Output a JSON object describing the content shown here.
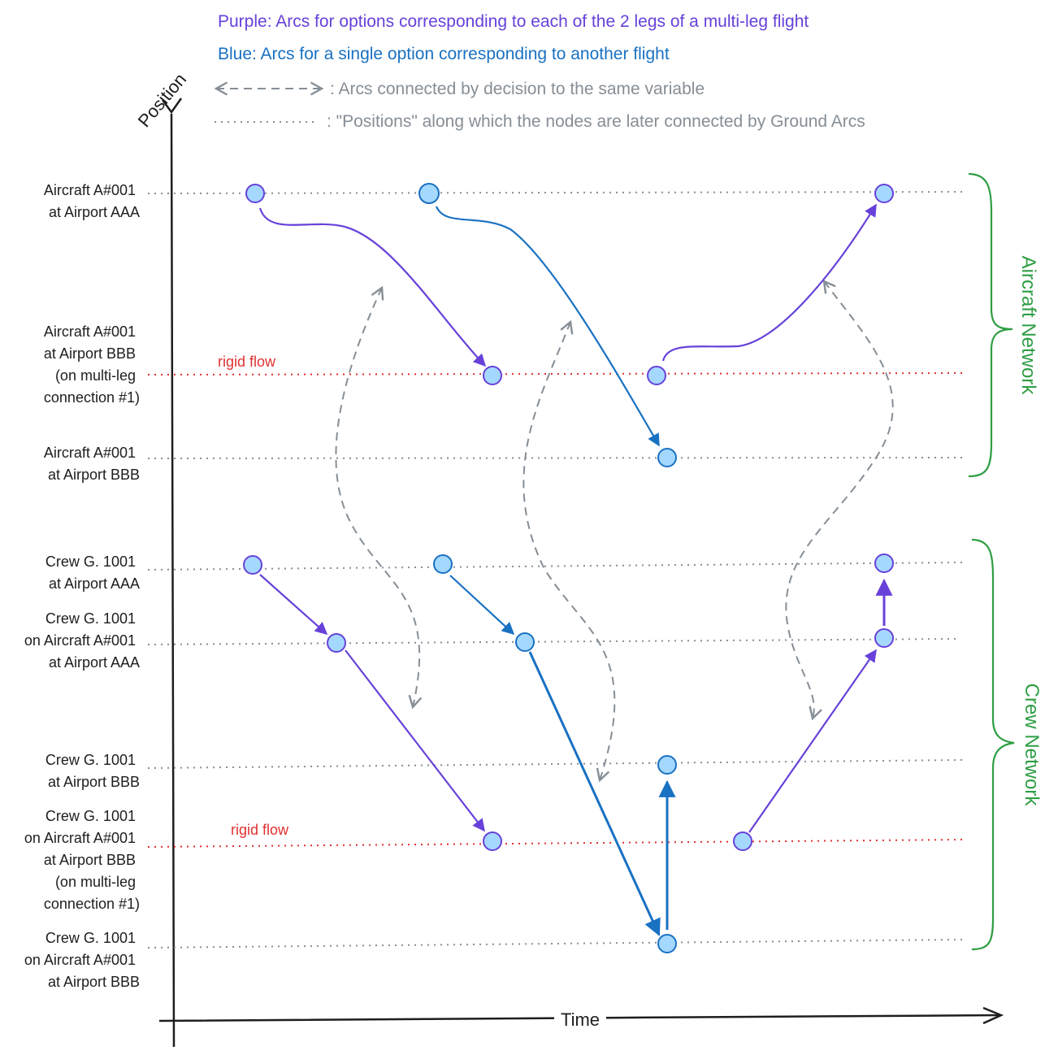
{
  "legend": {
    "purple": "Purple: Arcs for options corresponding to each of the 2 legs of a multi-leg flight",
    "blue": "Blue: Arcs for a single option corresponding to another flight",
    "decision": ": Arcs connected by decision to the same variable",
    "positions": ": \"Positions\" along which the nodes are later connected by Ground Arcs"
  },
  "axes": {
    "y_label": "Position",
    "x_label": "Time"
  },
  "rows": {
    "ac_aaa": [
      "Aircraft A#001",
      "at Airport AAA"
    ],
    "ac_bbb_ml": [
      "Aircraft A#001",
      "at Airport BBB",
      "(on multi-leg",
      "connection #1)"
    ],
    "ac_bbb": [
      "Aircraft A#001",
      "at Airport BBB"
    ],
    "crew_aaa": [
      "Crew G. 1001",
      "at Airport AAA"
    ],
    "crew_on_ac_aaa": [
      "Crew G. 1001",
      "on Aircraft A#001",
      "at Airport AAA"
    ],
    "crew_bbb": [
      "Crew G. 1001",
      "at Airport BBB"
    ],
    "crew_on_ac_bbb_ml": [
      "Crew G. 1001",
      "on Aircraft A#001",
      "at Airport BBB",
      "(on multi-leg",
      "connection #1)"
    ],
    "crew_on_ac_bbb": [
      "Crew G. 1001",
      "on Aircraft A#001",
      "at Airport BBB"
    ]
  },
  "rigid_flow_label": "rigid flow",
  "networks": {
    "aircraft": "Aircraft Network",
    "crew": "Crew Network"
  },
  "colors": {
    "purple": "#6741d9",
    "blue": "#1971c2",
    "gray": "#868e96",
    "red": "#e03131",
    "green": "#2f9e44",
    "node_fill": "#a5d8ff",
    "ink": "#1e1e1e"
  }
}
